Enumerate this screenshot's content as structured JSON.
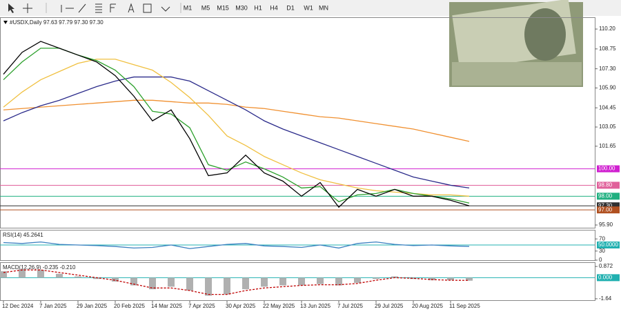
{
  "toolbar": {
    "timeframes": [
      "M1",
      "M5",
      "M15",
      "M30",
      "H1",
      "H4",
      "D1",
      "W1",
      "MN"
    ]
  },
  "chart_data": [
    {
      "type": "line",
      "title": "#USDX,Daily  97.63 97.79 97.30 97.30",
      "categories": [
        "12 Dec 2024",
        null,
        "7 Jan 2025",
        null,
        "29 Jan 2025",
        null,
        "20 Feb 2025",
        null,
        "14 Mar 2025",
        null,
        "7 Apr 2025",
        null,
        "30 Apr 2025",
        null,
        "22 May 2025",
        null,
        "13 Jun 2025",
        null,
        "7 Jul 2025",
        null,
        "29 Jul 2025",
        null,
        "20 Aug 2025",
        null,
        "11 Sep 2025",
        null
      ],
      "series": [
        {
          "color": "#f09030",
          "values": [
            104.3,
            104.4,
            104.5,
            104.6,
            104.7,
            104.8,
            104.9,
            105.0,
            105.0,
            104.9,
            104.8,
            104.8,
            104.7,
            104.5,
            104.4,
            104.2,
            104.0,
            103.8,
            103.7,
            103.5,
            103.3,
            103.1,
            102.9,
            102.6,
            102.3,
            102.0
          ]
        },
        {
          "color": "#2a2a8a",
          "values": [
            103.5,
            104.1,
            104.6,
            105.0,
            105.5,
            106.0,
            106.4,
            106.7,
            106.7,
            106.7,
            106.4,
            105.7,
            105.0,
            104.3,
            103.5,
            102.9,
            102.4,
            101.9,
            101.4,
            100.9,
            100.4,
            99.9,
            99.4,
            99.1,
            98.8,
            98.6
          ]
        },
        {
          "color": "#f0c040",
          "values": [
            104.5,
            105.6,
            106.5,
            107.1,
            107.7,
            108.0,
            108.0,
            107.6,
            107.2,
            106.3,
            105.2,
            103.9,
            102.4,
            101.7,
            100.9,
            100.3,
            99.7,
            99.2,
            98.9,
            98.6,
            98.4,
            98.3,
            98.2,
            98.1,
            98.1,
            98.0
          ]
        },
        {
          "color": "#2ca02c",
          "values": [
            106.5,
            107.8,
            108.8,
            108.8,
            108.3,
            107.9,
            107.2,
            106.0,
            104.2,
            104.0,
            103.0,
            100.3,
            99.9,
            100.5,
            100.0,
            99.4,
            98.6,
            98.7,
            97.6,
            98.1,
            98.2,
            98.5,
            98.2,
            98.0,
            97.8,
            97.5
          ]
        },
        {
          "color": "#000000",
          "values": [
            106.9,
            108.5,
            109.3,
            108.8,
            108.3,
            107.8,
            106.8,
            105.3,
            103.5,
            104.3,
            102.2,
            99.5,
            99.7,
            101.0,
            99.7,
            99.1,
            98.0,
            99.0,
            97.2,
            98.5,
            98.0,
            98.5,
            98.0,
            98.0,
            97.7,
            97.3
          ]
        }
      ],
      "ylim": [
        95.7,
        111.06
      ],
      "yticks": [
        {
          "value": 110.2,
          "label": "110.20"
        },
        108.75,
        {
          "value": 107.3,
          "label": "107.30"
        },
        {
          "value": 105.9,
          "label": "105.90"
        },
        104.45,
        103.05,
        101.65,
        {
          "value": 95.9,
          "label": "95.90"
        }
      ],
      "levels": [
        {
          "value": 100,
          "label": "100.00",
          "color": "#d020d0"
        },
        {
          "value": 98.8,
          "label": "98.80",
          "color": "#e0609a"
        },
        {
          "value": 98,
          "label": "98.00",
          "color": "#20b080"
        },
        {
          "value": 97.3,
          "label": "97.30",
          "color": "#303030"
        },
        {
          "value": 97,
          "label": "97.00",
          "color": "#b05020"
        }
      ]
    },
    {
      "type": "line",
      "title": "RSI(14) 45.2641",
      "color": "#3a7fc0",
      "values": [
        58,
        55,
        60,
        52,
        50,
        48,
        45,
        40,
        42,
        50,
        38,
        45,
        52,
        55,
        47,
        45,
        42,
        50,
        40,
        55,
        60,
        52,
        48,
        50,
        47,
        45.2641
      ],
      "ylim": [
        0,
        100
      ],
      "yticks": [
        70,
        30,
        0
      ],
      "levels": [
        {
          "value": 50,
          "label": "50.0000",
          "color": "#20b0b0"
        }
      ]
    },
    {
      "type": "bar",
      "title": "MACD(12,26,9) -0.235 -0.210",
      "color": "#b0b0b0",
      "signal_color": "#c00000",
      "values": [
        0.5,
        0.7,
        0.6,
        0.3,
        0.1,
        -0.1,
        -0.3,
        -0.6,
        -0.9,
        -0.7,
        -1.0,
        -1.4,
        -1.3,
        -0.9,
        -0.7,
        -0.6,
        -0.6,
        -0.5,
        -0.6,
        -0.4,
        -0.1,
        0.1,
        -0.1,
        -0.2,
        -0.2,
        -0.235
      ],
      "signal": [
        0.4,
        0.6,
        0.6,
        0.4,
        0.2,
        0.0,
        -0.2,
        -0.5,
        -0.8,
        -0.8,
        -1.0,
        -1.3,
        -1.3,
        -1.0,
        -0.8,
        -0.7,
        -0.6,
        -0.55,
        -0.55,
        -0.45,
        -0.2,
        0.0,
        -0.05,
        -0.15,
        -0.2,
        -0.21
      ],
      "ylim": [
        -1.75,
        1.2
      ],
      "yticks": [
        0.872,
        -1.64
      ],
      "levels": [
        {
          "value": 0,
          "label": "0.000",
          "color": "#20b0b0"
        }
      ]
    }
  ]
}
